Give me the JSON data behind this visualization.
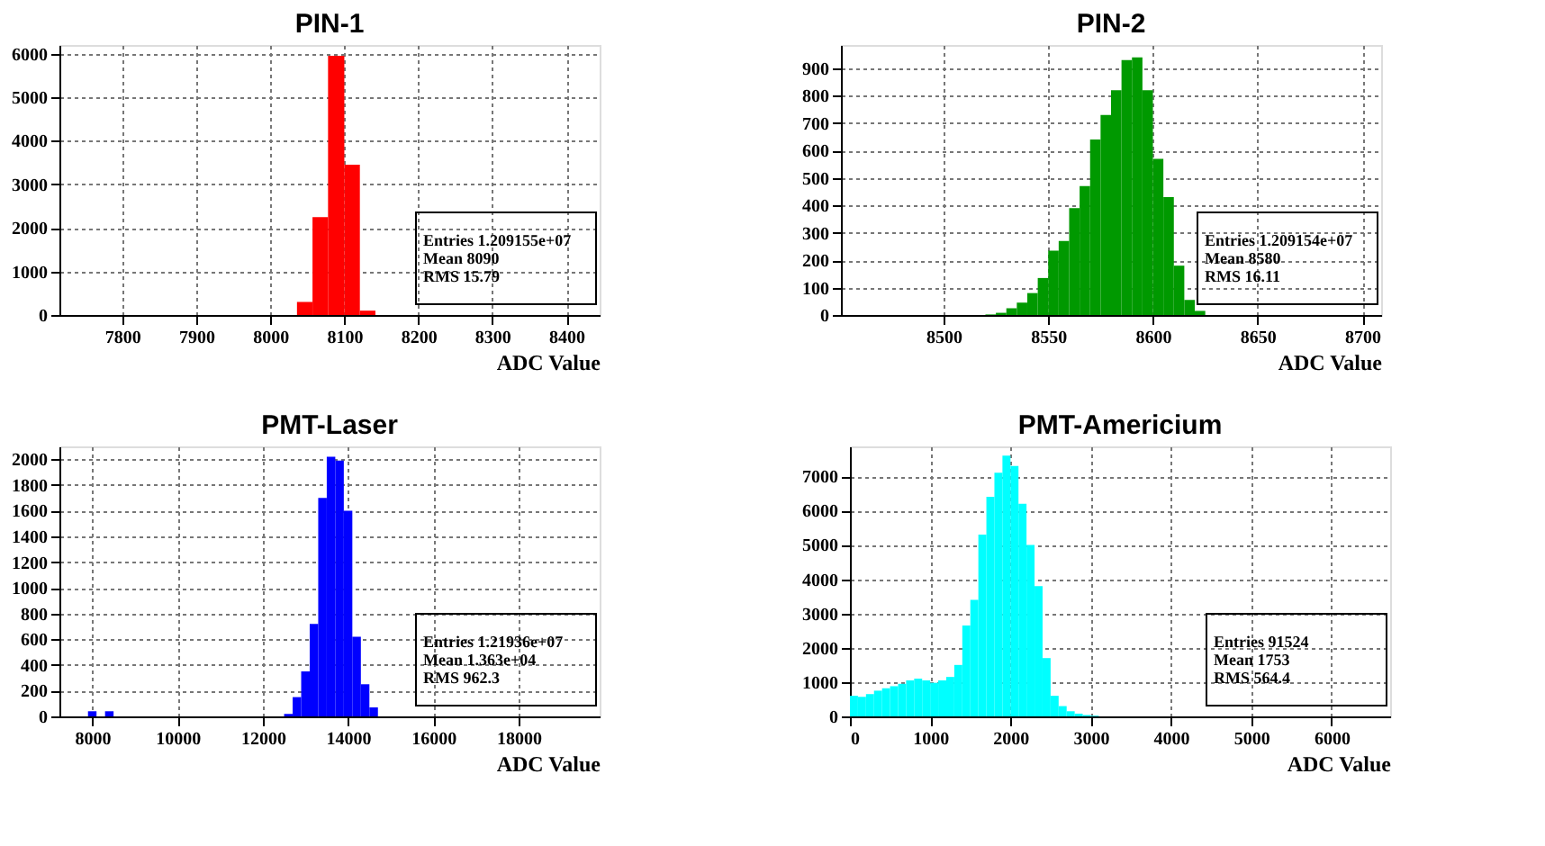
{
  "chart_data": [
    {
      "type": "histogram",
      "title": "PIN-1",
      "xlabel": "ADC Value",
      "color": "#ff0000",
      "grid": true,
      "bins": [
        8036,
        8057,
        8078,
        8100,
        8121,
        8142
      ],
      "values": [
        300,
        2250,
        5950,
        3450,
        100
      ],
      "xlim": [
        7715,
        8445
      ],
      "ylim": [
        0,
        6200
      ],
      "xticks": [
        7800,
        7900,
        8000,
        8100,
        8200,
        8300,
        8400
      ],
      "yticks": [
        0,
        1000,
        2000,
        3000,
        4000,
        5000,
        6000
      ],
      "annotations": [
        "Entries 1.209155e+07",
        "Mean 8090",
        "RMS 15.79"
      ]
    },
    {
      "type": "histogram",
      "title": "PIN-2",
      "xlabel": "ADC Value",
      "color": "#009900",
      "grid": true,
      "bins": [
        8520,
        8525,
        8530,
        8535,
        8540,
        8545,
        8550,
        8555,
        8560,
        8565,
        8570,
        8575,
        8580,
        8585,
        8590,
        8595,
        8600,
        8605,
        8610,
        8615,
        8620,
        8625
      ],
      "values": [
        2,
        8,
        25,
        45,
        80,
        135,
        235,
        270,
        390,
        470,
        640,
        730,
        820,
        930,
        940,
        820,
        570,
        430,
        180,
        55,
        15
      ],
      "xlim": [
        8451,
        8709
      ],
      "ylim": [
        0,
        985
      ],
      "xticks": [
        8500,
        8550,
        8600,
        8650,
        8700
      ],
      "yticks": [
        0,
        100,
        200,
        300,
        400,
        500,
        600,
        700,
        800,
        900
      ],
      "annotations": [
        "Entries 1.209154e+07",
        "Mean 8580",
        "RMS 16.11"
      ]
    },
    {
      "type": "histogram",
      "title": "PMT-Laser",
      "xlabel": "ADC Value",
      "color": "#0000ff",
      "grid": true,
      "bins": [
        7900,
        8100,
        8300,
        8500,
        8700,
        8900,
        9100,
        9300,
        9500,
        9700,
        9900,
        10100,
        10300,
        10500,
        10700,
        10900,
        11100,
        11300,
        11500,
        11700,
        11900,
        12100,
        12300,
        12500,
        12700,
        12900,
        13100,
        13300,
        13500,
        13700,
        13900,
        14100,
        14300,
        14500,
        14700
      ],
      "values": [
        40,
        0,
        40,
        0,
        0,
        0,
        0,
        0,
        0,
        0,
        0,
        0,
        0,
        0,
        0,
        0,
        0,
        0,
        0,
        0,
        0,
        0,
        0,
        20,
        150,
        350,
        720,
        1700,
        2020,
        1990,
        1600,
        620,
        250,
        70
      ],
      "xlim": [
        7230,
        19900
      ],
      "ylim": [
        0,
        2100
      ],
      "xticks": [
        8000,
        10000,
        12000,
        14000,
        16000,
        18000
      ],
      "yticks": [
        0,
        200,
        400,
        600,
        800,
        1000,
        1200,
        1400,
        1600,
        1800,
        2000
      ],
      "annotations": [
        "Entries 1.21936e+07",
        "Mean 1.363e+04",
        "RMS 962.3"
      ]
    },
    {
      "type": "histogram",
      "title": "PMT-Americium",
      "xlabel": "ADC Value",
      "color": "#00ffff",
      "grid": true,
      "bins": [
        0,
        100,
        200,
        300,
        400,
        500,
        600,
        700,
        800,
        900,
        1000,
        1100,
        1200,
        1300,
        1400,
        1500,
        1600,
        1700,
        1800,
        1900,
        2000,
        2100,
        2200,
        2300,
        2400,
        2500,
        2600,
        2700,
        2800,
        2900,
        3000,
        3100
      ],
      "values": [
        600,
        570,
        650,
        750,
        820,
        880,
        950,
        1050,
        1100,
        1050,
        980,
        1050,
        1150,
        1500,
        2650,
        3400,
        5300,
        6400,
        7100,
        7600,
        7300,
        6200,
        5000,
        3800,
        1700,
        600,
        300,
        150,
        80,
        40,
        20
      ],
      "xlim": [
        0,
        6730
      ],
      "ylim": [
        0,
        7870
      ],
      "xticks": [
        0,
        1000,
        2000,
        3000,
        4000,
        5000,
        6000
      ],
      "yticks": [
        0,
        1000,
        2000,
        3000,
        4000,
        5000,
        6000,
        7000
      ],
      "annotations": [
        "Entries 91524",
        "Mean 1753",
        "RMS 564.4"
      ]
    }
  ]
}
